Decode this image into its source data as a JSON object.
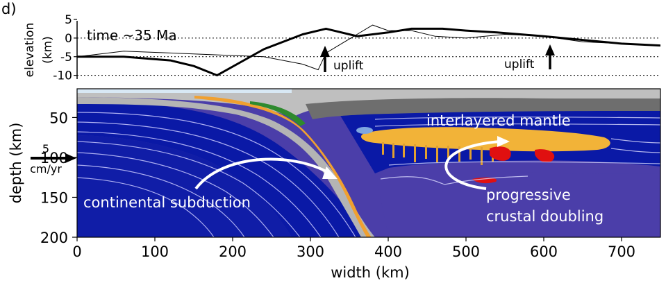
{
  "panel_label": "d)",
  "elevation_panel": {
    "time_label": "time ~35 Ma",
    "ylabel": "elevation\n(km)",
    "yticks": [
      "5",
      "0",
      "-5",
      "-10"
    ],
    "annotations": [
      "uplift",
      "uplift"
    ],
    "xlim": [
      0,
      750
    ],
    "ylim": [
      -11,
      5
    ],
    "series": [
      {
        "line": "thick",
        "x": [
          0,
          60,
          120,
          150,
          180,
          240,
          290,
          320,
          360,
          400,
          430,
          470,
          500,
          540,
          600,
          650,
          700,
          750
        ],
        "y": [
          -5,
          -5,
          -6,
          -7.5,
          -10,
          -3,
          1,
          2.5,
          0.5,
          1.5,
          2.5,
          2.5,
          2,
          1.5,
          0.5,
          -0.5,
          -1.5,
          -2
        ]
      },
      {
        "line": "thin",
        "x": [
          0,
          60,
          120,
          180,
          240,
          290,
          310,
          320,
          340,
          360,
          380,
          400,
          430,
          460,
          500,
          550,
          600,
          650,
          700,
          750
        ],
        "y": [
          -5,
          -3.5,
          -4,
          -4.5,
          -5,
          -7,
          -8.5,
          -4,
          -1.5,
          1,
          3.5,
          2,
          2,
          0.5,
          0,
          1,
          0.5,
          -1,
          -1.5,
          -2
        ]
      }
    ]
  },
  "section_panel": {
    "ylabel": "depth (km)",
    "yticks": [
      "50",
      "100",
      "150",
      "200"
    ],
    "xlabel": "width (km)",
    "xticks": [
      "0",
      "100",
      "200",
      "300",
      "400",
      "500",
      "600",
      "700"
    ],
    "velocity_arrow": {
      "value": "5",
      "unit": "cm/yr"
    },
    "labels": {
      "interlayered": "interlayered mantle",
      "subduction": "continental subduction",
      "doubling_1": "progressive",
      "doubling_2": "crustal doubling"
    }
  },
  "colors": {
    "mantle_blue": "#0a19a6",
    "deep_mantle": "#4a3ea8",
    "slab_grey": "#b4b4b4",
    "crust_orange": "#f0b040",
    "melt_red": "#e01010",
    "upper_grey": "#8a8a8a"
  }
}
